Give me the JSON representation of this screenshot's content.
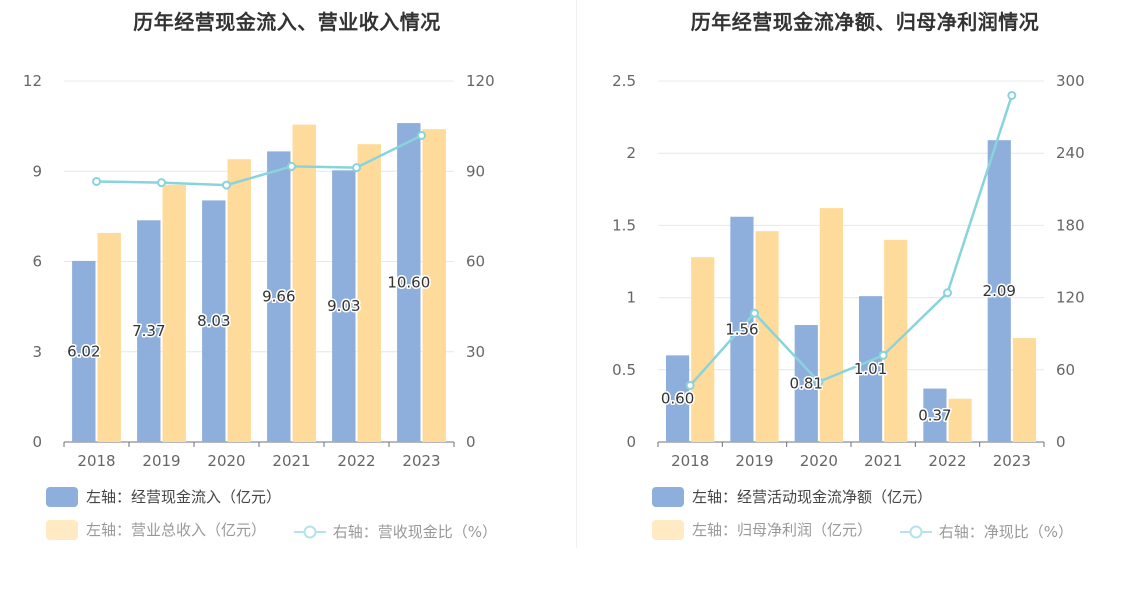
{
  "left": {
    "title": "历年经营现金流入、营业收入情况",
    "chart_data": {
      "type": "bar+line",
      "categories": [
        "2018",
        "2019",
        "2020",
        "2021",
        "2022",
        "2023"
      ],
      "left_axis": {
        "min": 0,
        "max": 12,
        "ticks": [
          "0",
          "3",
          "6",
          "9",
          "12"
        ]
      },
      "right_axis": {
        "min": 0,
        "max": 120,
        "ticks": [
          "0",
          "30",
          "60",
          "90",
          "120"
        ]
      },
      "series": [
        {
          "name": "左轴：经营现金流入（亿元）",
          "type": "bar",
          "axis": "left",
          "color": "#8eaedb",
          "values": [
            6.02,
            7.37,
            8.03,
            9.66,
            9.03,
            10.6
          ],
          "labels": [
            "6.02",
            "7.37",
            "8.03",
            "9.66",
            "9.03",
            "10.60"
          ]
        },
        {
          "name": "左轴：营业总收入（亿元）",
          "type": "bar",
          "axis": "left",
          "color": "#ffdb9b",
          "values": [
            6.95,
            8.55,
            9.4,
            10.55,
            9.9,
            10.4
          ]
        },
        {
          "name": "右轴：营收现金比（%）",
          "type": "line",
          "axis": "right",
          "color": "#89d4dc",
          "values": [
            86.6,
            86.2,
            85.4,
            91.6,
            91.2,
            101.9
          ]
        }
      ]
    }
  },
  "right": {
    "title": "历年经营现金流净额、归母净利润情况",
    "chart_data": {
      "type": "bar+line",
      "categories": [
        "2018",
        "2019",
        "2020",
        "2021",
        "2022",
        "2023"
      ],
      "left_axis": {
        "min": 0,
        "max": 2.5,
        "ticks": [
          "0",
          "0.5",
          "1",
          "1.5",
          "2",
          "2.5"
        ]
      },
      "right_axis": {
        "min": 0,
        "max": 300,
        "ticks": [
          "0",
          "60",
          "120",
          "180",
          "240",
          "300"
        ]
      },
      "series": [
        {
          "name": "左轴：经营活动现金流净额（亿元）",
          "type": "bar",
          "axis": "left",
          "color": "#8eaedb",
          "values": [
            0.6,
            1.56,
            0.81,
            1.01,
            0.37,
            2.09
          ],
          "labels": [
            "0.60",
            "1.56",
            "0.81",
            "1.01",
            "0.37",
            "2.09"
          ]
        },
        {
          "name": "左轴：归母净利润（亿元）",
          "type": "bar",
          "axis": "left",
          "color": "#ffdb9b",
          "values": [
            1.28,
            1.46,
            1.62,
            1.4,
            0.3,
            0.72
          ]
        },
        {
          "name": "右轴：净现比（%）",
          "type": "line",
          "axis": "right",
          "color": "#89d4dc",
          "values": [
            47,
            107,
            50,
            72,
            124,
            288
          ]
        }
      ]
    }
  }
}
